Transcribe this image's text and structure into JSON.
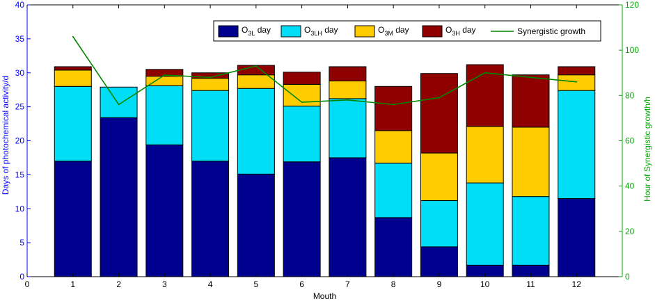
{
  "chart_data": {
    "type": "bar",
    "stacked": true,
    "xlabel": "Mouth",
    "ylabel": "Days of photochemical activity/d",
    "y2label": "Hour of Synergistic growth/h",
    "xlim": [
      0,
      13
    ],
    "ylim": [
      0,
      40
    ],
    "y2lim": [
      0,
      120
    ],
    "x_ticks": [
      "0",
      "1",
      "2",
      "3",
      "4",
      "5",
      "6",
      "7",
      "8",
      "9",
      "10",
      "11",
      "12"
    ],
    "y_ticks": [
      "0",
      "5",
      "10",
      "15",
      "20",
      "25",
      "30",
      "35",
      "40"
    ],
    "y2_ticks": [
      "0",
      "20",
      "40",
      "60",
      "80",
      "100",
      "120"
    ],
    "categories": [
      1,
      2,
      3,
      4,
      5,
      6,
      7,
      8,
      9,
      10,
      11,
      12
    ],
    "series": [
      {
        "name": "O3L day",
        "base": "O",
        "sub": "3L",
        "suffix": " day",
        "color": "#00008F",
        "values": [
          17,
          23.4,
          19.4,
          17,
          15.1,
          16.9,
          17.5,
          8.7,
          4.4,
          1.7,
          1.7,
          11.5
        ]
      },
      {
        "name": "O3LH day",
        "base": "O",
        "sub": "3LH",
        "suffix": " day",
        "color": "#00DDF7",
        "values": [
          11,
          4.5,
          8.7,
          10.4,
          12.6,
          8.2,
          8.7,
          8,
          6.8,
          12.1,
          10.1,
          15.9
        ]
      },
      {
        "name": "O3M day",
        "base": "O",
        "sub": "3M",
        "suffix": " day",
        "color": "#FFCC00",
        "values": [
          2.4,
          0,
          1.4,
          1.8,
          2,
          3.2,
          2.6,
          4.8,
          7,
          8.3,
          10.2,
          2.3
        ]
      },
      {
        "name": "O3H day",
        "base": "O",
        "sub": "3H",
        "suffix": " day",
        "color": "#8F0000",
        "values": [
          0.5,
          0,
          1,
          0.8,
          1.4,
          1.8,
          2.1,
          6.5,
          11.7,
          9.1,
          7.7,
          1.2
        ]
      }
    ],
    "line_series": {
      "name": "Synergistic growth",
      "color": "#008800",
      "axis": "right",
      "values": [
        106,
        76,
        89,
        88,
        93,
        77,
        78,
        76,
        79,
        90,
        88,
        86
      ]
    },
    "left_axis_color": "#0000FF",
    "right_axis_color": "#00AA00",
    "legend_placement": "top-right"
  }
}
